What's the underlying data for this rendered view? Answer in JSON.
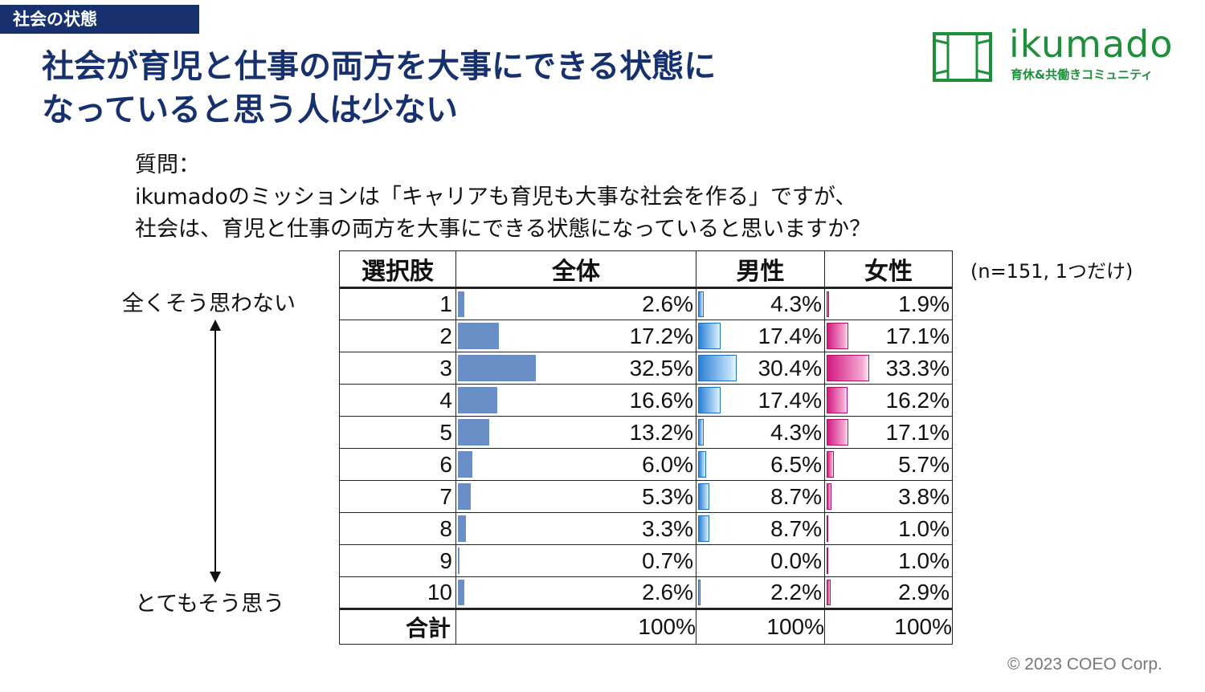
{
  "header": {
    "tag": "社会の状態",
    "title_line1": "社会が育児と仕事の両方を大事にできる状態に",
    "title_line2": "なっていると思う人は少ない"
  },
  "logo": {
    "name": "ikumado",
    "subtitle": "育休&共働きコミュニティ",
    "color": "#1e8f3a"
  },
  "question": {
    "label": "質問：",
    "line1": "ikumadoのミッションは「キャリアも育児も大事な社会を作る」ですが、",
    "line2": "社会は、育児と仕事の両方を大事にできる状態になっていると思いますか？"
  },
  "scale": {
    "top": "全くそう思わない",
    "bottom": "とてもそう思う"
  },
  "note": "(n=151, 1つだけ)",
  "copyright": "© 2023 COEO Corp.",
  "chart_data": {
    "type": "table",
    "columns": [
      "選択肢",
      "全体",
      "男性",
      "女性"
    ],
    "categories": [
      "1",
      "2",
      "3",
      "4",
      "5",
      "6",
      "7",
      "8",
      "9",
      "10"
    ],
    "series": [
      {
        "name": "全体",
        "values": [
          2.6,
          17.2,
          32.5,
          16.6,
          13.2,
          6.0,
          5.3,
          3.3,
          0.7,
          2.6
        ],
        "labels": [
          "2.6%",
          "17.2%",
          "32.5%",
          "16.6%",
          "13.2%",
          "6.0%",
          "5.3%",
          "3.3%",
          "0.7%",
          "2.6%"
        ],
        "color": "#6a8fc7"
      },
      {
        "name": "男性",
        "values": [
          4.3,
          17.4,
          30.4,
          17.4,
          4.3,
          6.5,
          8.7,
          8.7,
          0.0,
          2.2
        ],
        "labels": [
          "4.3%",
          "17.4%",
          "30.4%",
          "17.4%",
          "4.3%",
          "6.5%",
          "8.7%",
          "8.7%",
          "0.0%",
          "2.2%"
        ],
        "color": "#2a7fd4"
      },
      {
        "name": "女性",
        "values": [
          1.9,
          17.1,
          33.3,
          16.2,
          17.1,
          5.7,
          3.8,
          1.0,
          1.0,
          2.9
        ],
        "labels": [
          "1.9%",
          "17.1%",
          "33.3%",
          "16.2%",
          "17.1%",
          "5.7%",
          "3.8%",
          "1.0%",
          "1.0%",
          "2.9%"
        ],
        "color": "#d2197f"
      }
    ],
    "total_row": {
      "label": "合計",
      "values": [
        "100%",
        "100%",
        "100%"
      ]
    },
    "bar_max": 100
  }
}
